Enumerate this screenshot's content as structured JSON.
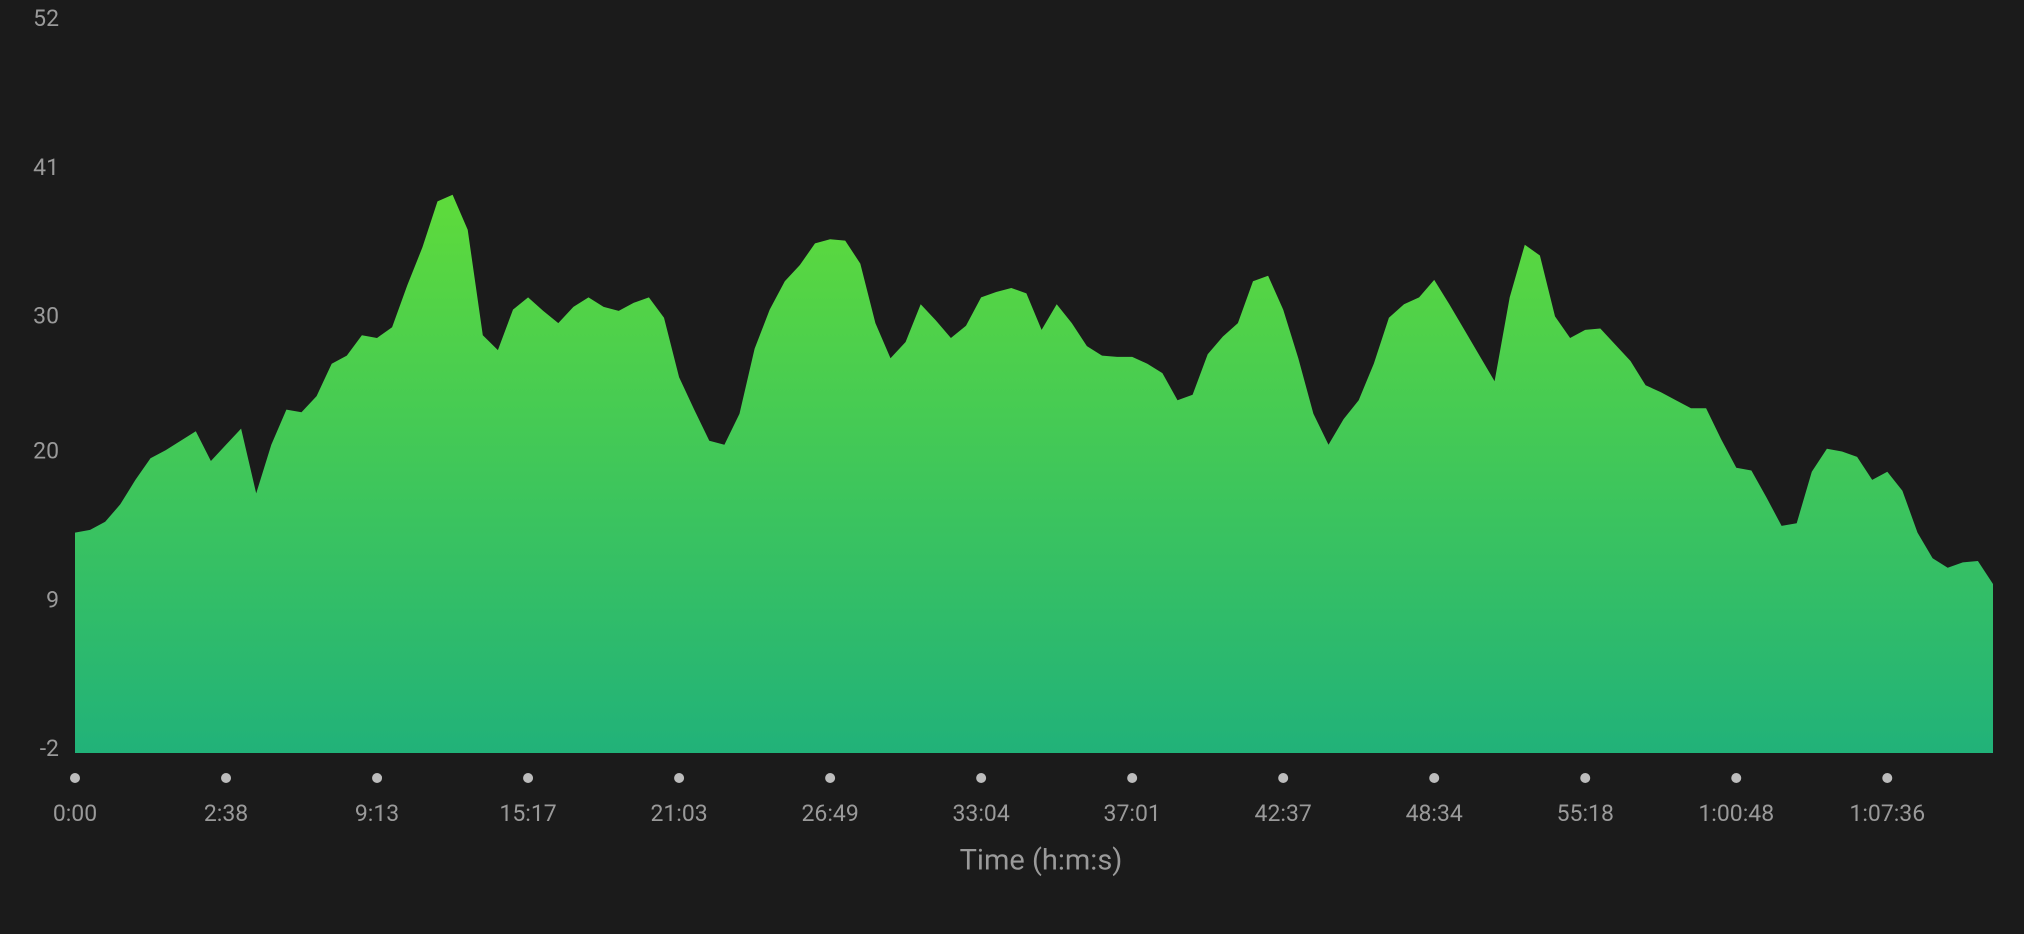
{
  "chart_data": {
    "type": "area",
    "xlabel": "Time (h:m:s)",
    "categories": [
      "0:00",
      null,
      null,
      null,
      null,
      null,
      null,
      null,
      null,
      null,
      "2:38",
      null,
      null,
      null,
      null,
      null,
      null,
      null,
      null,
      null,
      "9:13",
      null,
      null,
      null,
      null,
      null,
      null,
      null,
      null,
      null,
      "15:17",
      null,
      null,
      null,
      null,
      null,
      null,
      null,
      null,
      null,
      "21:03",
      null,
      null,
      null,
      null,
      null,
      null,
      null,
      null,
      null,
      "26:49",
      null,
      null,
      null,
      null,
      null,
      null,
      null,
      null,
      null,
      "33:04",
      null,
      null,
      null,
      null,
      null,
      null,
      null,
      null,
      null,
      "37:01",
      null,
      null,
      null,
      null,
      null,
      null,
      null,
      null,
      null,
      "42:37",
      null,
      null,
      null,
      null,
      null,
      null,
      null,
      null,
      null,
      "48:34",
      null,
      null,
      null,
      null,
      null,
      null,
      null,
      null,
      null,
      "55:18",
      null,
      null,
      null,
      null,
      null,
      null,
      null,
      null,
      null,
      "1:00:48",
      null,
      null,
      null,
      null,
      null,
      null,
      null,
      null,
      null,
      "1:07:36",
      null,
      null,
      null,
      null,
      null,
      null,
      null
    ],
    "values": [
      14.3,
      14.5,
      15.1,
      16.4,
      18.2,
      19.8,
      20.4,
      21.1,
      21.8,
      19.6,
      20.8,
      22.0,
      17.2,
      20.8,
      23.4,
      23.2,
      24.4,
      26.8,
      27.4,
      28.9,
      28.7,
      29.5,
      32.6,
      35.4,
      38.8,
      39.3,
      36.7,
      28.9,
      27.8,
      30.8,
      31.7,
      30.7,
      29.8,
      31.0,
      31.7,
      31.0,
      30.7,
      31.3,
      31.7,
      30.2,
      25.8,
      23.4,
      21.1,
      20.8,
      23.1,
      27.9,
      30.8,
      32.9,
      34.1,
      35.7,
      36.0,
      35.9,
      34.2,
      29.8,
      27.2,
      28.4,
      31.2,
      30.0,
      28.7,
      29.6,
      31.7,
      32.1,
      32.4,
      32.0,
      29.3,
      31.2,
      29.8,
      28.1,
      27.4,
      27.3,
      27.3,
      26.8,
      26.1,
      24.1,
      24.5,
      27.5,
      28.8,
      29.8,
      32.9,
      33.3,
      30.8,
      27.2,
      23.1,
      20.8,
      22.7,
      24.1,
      26.8,
      30.2,
      31.2,
      31.7,
      33.0,
      31.2,
      29.3,
      27.4,
      25.5,
      31.7,
      35.6,
      34.8,
      30.3,
      28.7,
      29.3,
      29.4,
      28.2,
      27.0,
      25.2,
      24.7,
      24.1,
      23.5,
      23.5,
      21.2,
      19.1,
      18.9,
      16.9,
      14.8,
      15.0,
      18.8,
      20.5,
      20.3,
      19.9,
      18.2,
      18.8,
      17.4,
      14.3,
      12.4,
      11.7,
      12.1,
      12.2,
      10.5
    ],
    "ylim": [
      -2,
      52
    ],
    "yticks": [
      -2,
      9,
      20,
      30,
      41,
      52
    ],
    "gradient": [
      "#5edb3b",
      "#21b279"
    ],
    "background": "#1b1b1b",
    "text_color": "#9a9a9a",
    "tick_dot_color": "#bdbdbd"
  }
}
